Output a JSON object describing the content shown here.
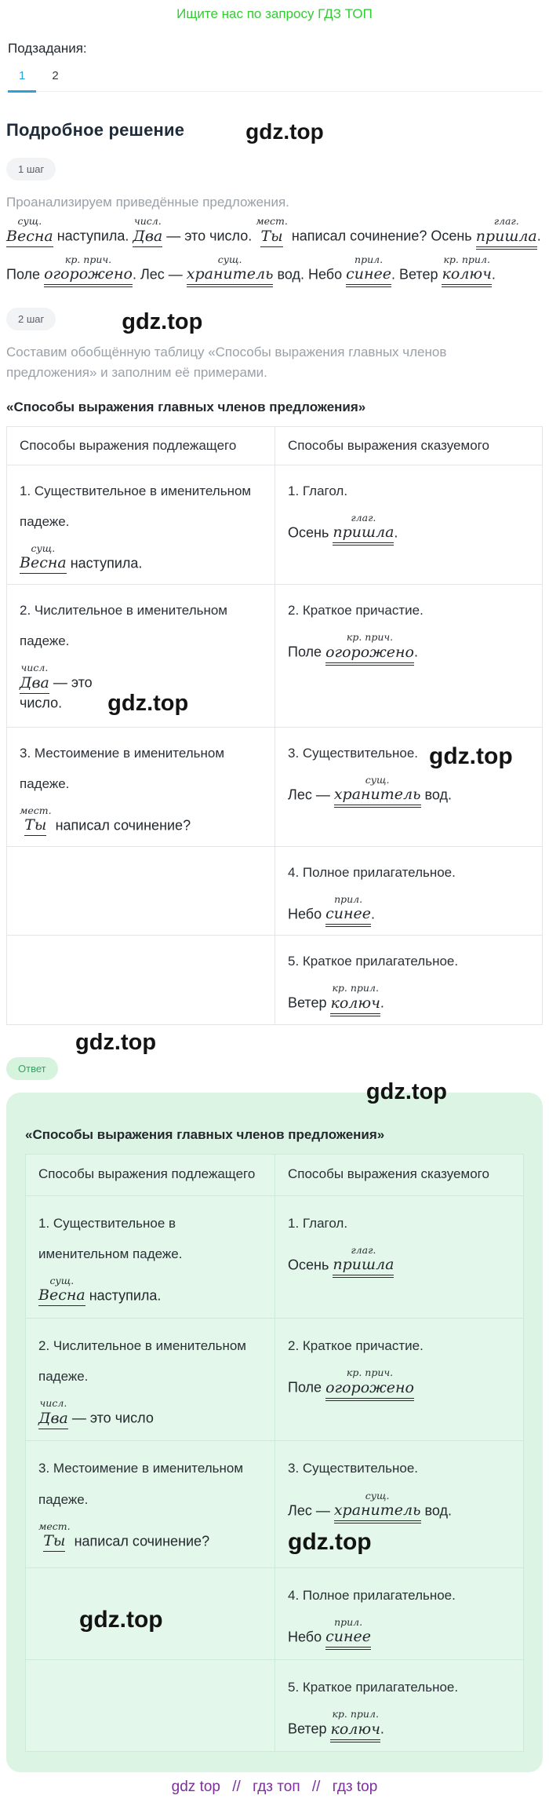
{
  "watermark": "gdz.top",
  "colors": {
    "green": "#31cd32",
    "blue": "#2aa2d8",
    "purple": "#7c2f9c",
    "mint": "#dcf4e3",
    "abadge-bg": "#d6f3de",
    "abadge-text": "#2fa763"
  },
  "header": {
    "promo": "Ищите нас по запросу ГДЗ ТОП",
    "subtasks_label": "Подзадания:",
    "tabs": [
      "1",
      "2"
    ],
    "active_tab": "1"
  },
  "solution": {
    "title": "Подробное решение",
    "step1": {
      "badge": "1 шаг",
      "intro": "Проанализируем приведённые предложения.",
      "lines": [
        [
          {
            "w": "Весна",
            "l": "сущ.",
            "u": "s"
          },
          {
            "t": " наступила. "
          },
          {
            "w": "Два",
            "l": "числ.",
            "u": "s"
          },
          {
            "t": " — это число. "
          },
          {
            "w": "Ты",
            "l": "мест.",
            "u": "s"
          },
          {
            "t": "  написал сочинение? Осень "
          },
          {
            "w": "пришла",
            "l": "глаг.",
            "u": "d"
          },
          {
            "t": "."
          }
        ],
        [
          {
            "t": "Поле "
          },
          {
            "w": "огорожено",
            "l": "кр. прич.",
            "u": "d"
          },
          {
            "t": ". Лес — "
          },
          {
            "w": "хранитель",
            "l": "сущ.",
            "u": "d"
          },
          {
            "t": " вод. Небо "
          },
          {
            "w": "синее",
            "l": "прил.",
            "u": "d"
          },
          {
            "t": ". Ветер "
          },
          {
            "w": "колюч",
            "l": "кр. прил.",
            "u": "d"
          },
          {
            "t": "."
          }
        ]
      ]
    },
    "step2": {
      "badge": "2 шаг",
      "intro": "Составим обобщённую таблицу «Способы выражения главных членов предложения» и заполним её примерами.",
      "table_title": "«Способы выражения главных членов предложения»"
    }
  },
  "table": {
    "headers": [
      "Способы выражения подлежащего",
      "Способы выражения сказуемого"
    ],
    "rows": [
      {
        "left": {
          "title": "1. Существительное в именительном падеже.",
          "example": [
            {
              "w": "Весна",
              "l": "сущ.",
              "u": "s"
            },
            {
              "t": " наступила."
            }
          ]
        },
        "right": {
          "title": "1. Глагол.",
          "example": [
            {
              "t": "Осень "
            },
            {
              "w": "пришла",
              "l": "глаг.",
              "u": "d"
            },
            {
              "t": "."
            }
          ]
        }
      },
      {
        "left": {
          "title": "2. Числительное в именительном падеже.",
          "example": [
            {
              "w": "Два",
              "l": "числ.",
              "u": "s"
            },
            {
              "t": " — это число."
            }
          ],
          "wm": "example"
        },
        "right": {
          "title": "2. Краткое причастие.",
          "example": [
            {
              "t": "Поле "
            },
            {
              "w": "огорожено",
              "l": "кр. прич.",
              "u": "d"
            },
            {
              "t": "."
            }
          ]
        }
      },
      {
        "left": {
          "title": "3. Местоимение в именительном падеже.",
          "example": [
            {
              "w": "Ты",
              "l": "мест.",
              "u": "s"
            },
            {
              "t": "  написал сочинение?"
            }
          ]
        },
        "right": {
          "title": "3. Существительное.",
          "example": [
            {
              "t": "Лес — "
            },
            {
              "w": "хранитель",
              "l": "сущ.",
              "u": "d"
            },
            {
              "t": " вод."
            }
          ],
          "wm": "title"
        }
      },
      {
        "left": {},
        "right": {
          "title": "4. Полное прилагательное.",
          "example": [
            {
              "t": "Небо "
            },
            {
              "w": "синее",
              "l": "прил.",
              "u": "d"
            },
            {
              "t": "."
            }
          ]
        }
      },
      {
        "left": {},
        "right": {
          "title": "5. Краткое прилагательное.",
          "example": [
            {
              "t": "Ветер "
            },
            {
              "w": "колюч",
              "l": "кр. прил.",
              "u": "d"
            },
            {
              "t": "."
            }
          ]
        }
      }
    ]
  },
  "answer": {
    "badge": "Ответ",
    "table_title": "«Способы выражения главных членов предложения»",
    "headers": [
      "Способы выражения подлежащего",
      "Способы выражения сказуемого"
    ],
    "rows": [
      {
        "left": {
          "title": "1. Существительное в именительном падеже.",
          "example": [
            {
              "w": "Весна",
              "l": "сущ.",
              "u": "s"
            },
            {
              "t": " наступила."
            }
          ]
        },
        "right": {
          "title": "1. Глагол.",
          "example": [
            {
              "t": "Осень "
            },
            {
              "w": "пришла",
              "l": "глаг.",
              "u": "d"
            }
          ]
        }
      },
      {
        "left": {
          "title": "2. Числительное в именительном падеже.",
          "example": [
            {
              "w": "Два",
              "l": "числ.",
              "u": "s"
            },
            {
              "t": " — это число"
            }
          ]
        },
        "right": {
          "title": "2. Краткое причастие.",
          "example": [
            {
              "t": "Поле "
            },
            {
              "w": "огорожено",
              "l": "кр. прич.",
              "u": "d"
            }
          ]
        }
      },
      {
        "left": {
          "title": "3. Местоимение в именительном падеже.",
          "example": [
            {
              "w": "Ты",
              "l": "мест.",
              "u": "s"
            },
            {
              "t": "  написал сочинение?"
            }
          ]
        },
        "right": {
          "title": "3. Существительное.",
          "example": [
            {
              "t": "Лес — "
            },
            {
              "w": "хранитель",
              "l": "сущ.",
              "u": "d"
            },
            {
              "t": " вод."
            }
          ],
          "wm": "below"
        }
      },
      {
        "left": {
          "wm": "empty"
        },
        "right": {
          "title": "4. Полное прилагательное.",
          "example": [
            {
              "t": "Небо "
            },
            {
              "w": "синее",
              "l": "прил.",
              "u": "d"
            }
          ]
        }
      },
      {
        "left": {},
        "right": {
          "title": "5. Краткое прилагательное.",
          "example": [
            {
              "t": "Ветер "
            },
            {
              "w": "колюч",
              "l": "кр. прил.",
              "u": "d"
            },
            {
              "t": "."
            }
          ]
        }
      }
    ]
  },
  "footer": {
    "items": [
      "gdz top",
      "гдз топ",
      "гдз top"
    ],
    "separator": "//"
  }
}
